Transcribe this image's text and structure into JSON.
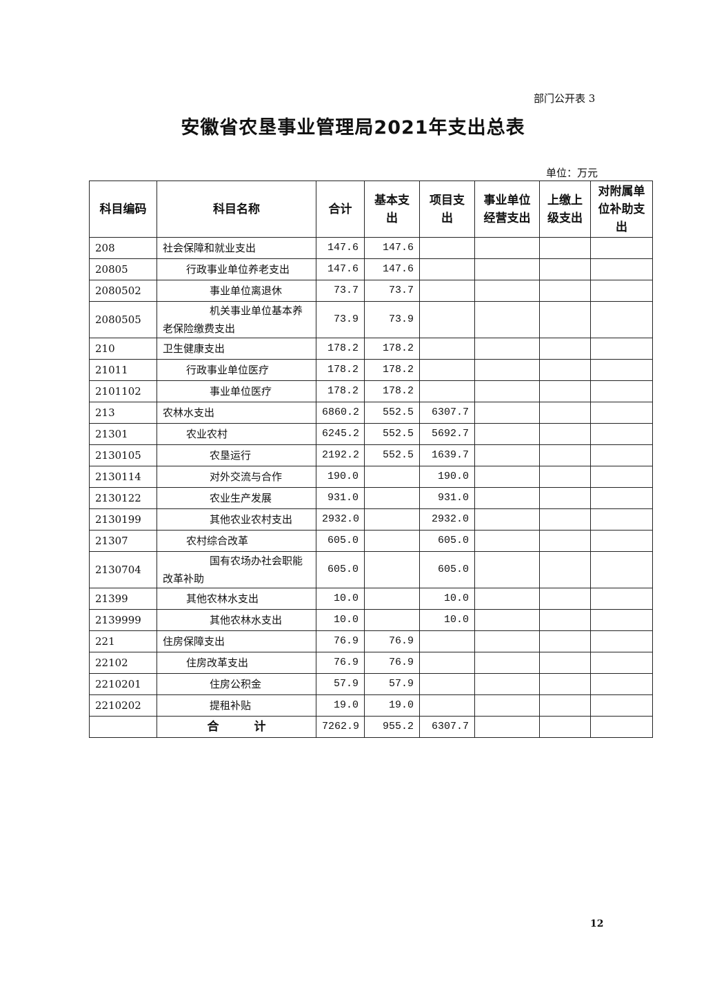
{
  "form_number": "部门公开表 3",
  "title": "安徽省农垦事业管理局2021年支出总表",
  "unit": "单位：万元",
  "table": {
    "headers": [
      "科目编码",
      "科目名称",
      "合计",
      "基本支出",
      "项目支出",
      "事业单位经营支出",
      "上缴上级支出",
      "对附属单位补助支出"
    ],
    "rows": [
      {
        "code": "208",
        "name": "社会保障和就业支出",
        "level": 0,
        "total": "147.6",
        "basic": "147.6",
        "project": ""
      },
      {
        "code": "20805",
        "name": "行政事业单位养老支出",
        "level": 1,
        "total": "147.6",
        "basic": "147.6",
        "project": ""
      },
      {
        "code": "2080502",
        "name": "事业单位离退休",
        "level": 2,
        "total": "73.7",
        "basic": "73.7",
        "project": ""
      },
      {
        "code": "2080505",
        "name": "机关事业单位基本养老保险缴费支出",
        "level": 2,
        "total": "73.9",
        "basic": "73.9",
        "project": "",
        "tall": true
      },
      {
        "code": "210",
        "name": "卫生健康支出",
        "level": 0,
        "total": "178.2",
        "basic": "178.2",
        "project": ""
      },
      {
        "code": "21011",
        "name": "行政事业单位医疗",
        "level": 1,
        "total": "178.2",
        "basic": "178.2",
        "project": ""
      },
      {
        "code": "2101102",
        "name": "事业单位医疗",
        "level": 2,
        "total": "178.2",
        "basic": "178.2",
        "project": ""
      },
      {
        "code": "213",
        "name": "农林水支出",
        "level": 0,
        "total": "6860.2",
        "basic": "552.5",
        "project": "6307.7"
      },
      {
        "code": "21301",
        "name": "农业农村",
        "level": 1,
        "total": "6245.2",
        "basic": "552.5",
        "project": "5692.7"
      },
      {
        "code": "2130105",
        "name": "农垦运行",
        "level": 2,
        "total": "2192.2",
        "basic": "552.5",
        "project": "1639.7"
      },
      {
        "code": "2130114",
        "name": "对外交流与合作",
        "level": 2,
        "total": "190.0",
        "basic": "",
        "project": "190.0"
      },
      {
        "code": "2130122",
        "name": "农业生产发展",
        "level": 2,
        "total": "931.0",
        "basic": "",
        "project": "931.0"
      },
      {
        "code": "2130199",
        "name": "其他农业农村支出",
        "level": 2,
        "total": "2932.0",
        "basic": "",
        "project": "2932.0"
      },
      {
        "code": "21307",
        "name": "农村综合改革",
        "level": 1,
        "total": "605.0",
        "basic": "",
        "project": "605.0"
      },
      {
        "code": "2130704",
        "name": "国有农场办社会职能改革补助",
        "level": 2,
        "total": "605.0",
        "basic": "",
        "project": "605.0",
        "tall": true
      },
      {
        "code": "21399",
        "name": "其他农林水支出",
        "level": 1,
        "total": "10.0",
        "basic": "",
        "project": "10.0"
      },
      {
        "code": "2139999",
        "name": "其他农林水支出",
        "level": 2,
        "total": "10.0",
        "basic": "",
        "project": "10.0"
      },
      {
        "code": "221",
        "name": "住房保障支出",
        "level": 0,
        "total": "76.9",
        "basic": "76.9",
        "project": ""
      },
      {
        "code": "22102",
        "name": "住房改革支出",
        "level": 1,
        "total": "76.9",
        "basic": "76.9",
        "project": ""
      },
      {
        "code": "2210201",
        "name": "住房公积金",
        "level": 2,
        "total": "57.9",
        "basic": "57.9",
        "project": ""
      },
      {
        "code": "2210202",
        "name": "提租补贴",
        "level": 2,
        "total": "19.0",
        "basic": "19.0",
        "project": ""
      }
    ],
    "total_row": {
      "label": "合　　　计",
      "total": "7262.9",
      "basic": "955.2",
      "project": "6307.7"
    }
  },
  "page_number": "12"
}
